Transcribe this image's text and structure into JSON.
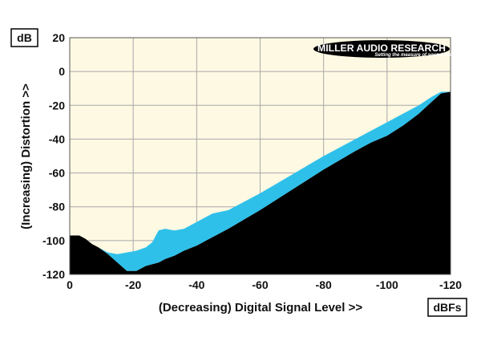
{
  "chart_data": {
    "type": "area",
    "ylabel": "(Increasing) Distortion >>",
    "xlabel": "(Decreasing) Digital Signal Level >>",
    "y_unit": "dB",
    "x_unit": "dBFs",
    "xlim": [
      0,
      -120
    ],
    "ylim": [
      -120,
      20
    ],
    "x_ticks": [
      0,
      -20,
      -40,
      -60,
      -80,
      -100,
      -120
    ],
    "y_ticks": [
      20,
      0,
      -20,
      -40,
      -60,
      -80,
      -100,
      -120
    ],
    "grid": true,
    "colors": {
      "plot_background": "#fdf9e3",
      "band_fill": "#2fc0ea",
      "floor_fill": "#000000",
      "grid": "#a8a8a8"
    },
    "series": [
      {
        "name": "upper",
        "x": [
          0,
          -3,
          -5,
          -7,
          -9,
          -12,
          -15,
          -18,
          -21,
          -24,
          -26,
          -28,
          -30,
          -33,
          -36,
          -40,
          -45,
          -50,
          -60,
          -70,
          -80,
          -90,
          -95,
          -100,
          -105,
          -110,
          -114,
          -117,
          -120
        ],
        "y": [
          -97,
          -97,
          -99,
          -102,
          -104,
          -107,
          -108,
          -107,
          -106,
          -104,
          -101,
          -94,
          -93,
          -94,
          -93,
          -89,
          -84,
          -82,
          -72,
          -61,
          -50,
          -40,
          -35,
          -30,
          -25,
          -20,
          -15,
          -12,
          -12
        ]
      },
      {
        "name": "lower",
        "x": [
          0,
          -3,
          -5,
          -7,
          -9,
          -12,
          -15,
          -18,
          -21,
          -24,
          -26,
          -28,
          -30,
          -33,
          -36,
          -40,
          -45,
          -50,
          -60,
          -70,
          -80,
          -90,
          -95,
          -100,
          -105,
          -110,
          -114,
          -117,
          -120
        ],
        "y": [
          -97,
          -97,
          -99,
          -102,
          -104,
          -108,
          -113,
          -118,
          -118,
          -115,
          -114,
          -113,
          -111,
          -109,
          -106,
          -103,
          -98,
          -93,
          -82,
          -70,
          -58,
          -47,
          -42,
          -38,
          -32,
          -25,
          -18,
          -13,
          -12
        ]
      }
    ]
  },
  "logo": {
    "main": "MILLER AUDIO RESEARCH",
    "tagline": "Setting the measure of sound quality"
  }
}
